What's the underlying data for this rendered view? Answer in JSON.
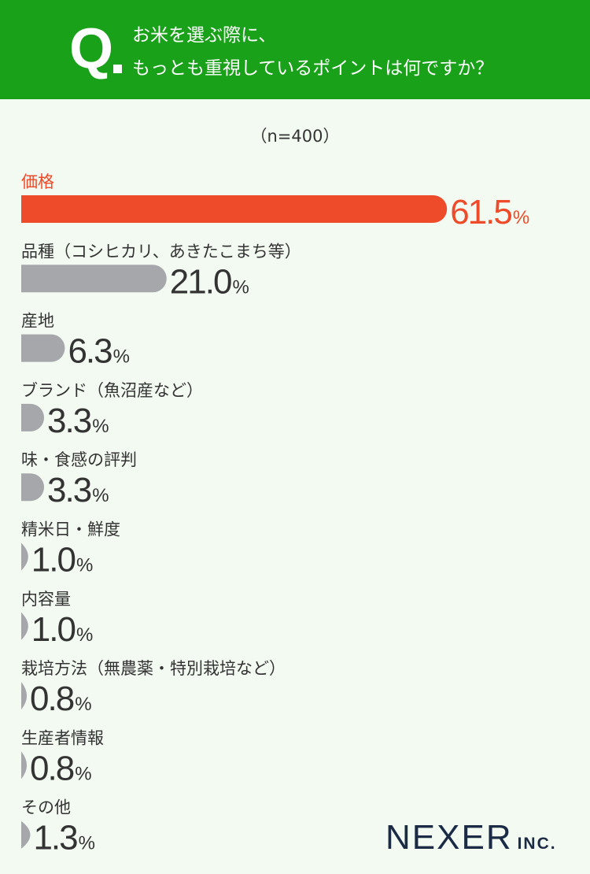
{
  "question": {
    "mark": "Q",
    "line1": "お米を選ぶ際に、",
    "line2": "もっとも重視しているポイントは何ですか？"
  },
  "sample": "（n=400）",
  "logo": {
    "name": "NEXER",
    "suffix": "INC."
  },
  "colors": {
    "header": "#1aa11a",
    "background": "#f2faf1",
    "highlight": "#ee4b2b",
    "bar": "#a6a7ab",
    "text": "#333333",
    "logo": "#1c2b45"
  },
  "chart_data": {
    "type": "bar",
    "orientation": "horizontal",
    "unit": "%",
    "categories": [
      "価格",
      "品種（コシヒカリ、あきたこまち等）",
      "産地",
      "ブランド（魚沼産など）",
      "味・食感の評判",
      "精米日・鮮度",
      "内容量",
      "栽培方法（無農薬・特別栽培など）",
      "生産者情報",
      "その他"
    ],
    "values": [
      61.5,
      21.0,
      6.3,
      3.3,
      3.3,
      1.0,
      1.0,
      0.8,
      0.8,
      1.3
    ],
    "labels": [
      "61.5",
      "21.0",
      "6.3",
      "3.3",
      "3.3",
      "1.0",
      "1.0",
      "0.8",
      "0.8",
      "1.3"
    ],
    "highlight_index": 0,
    "grid": false,
    "legend": "none"
  }
}
